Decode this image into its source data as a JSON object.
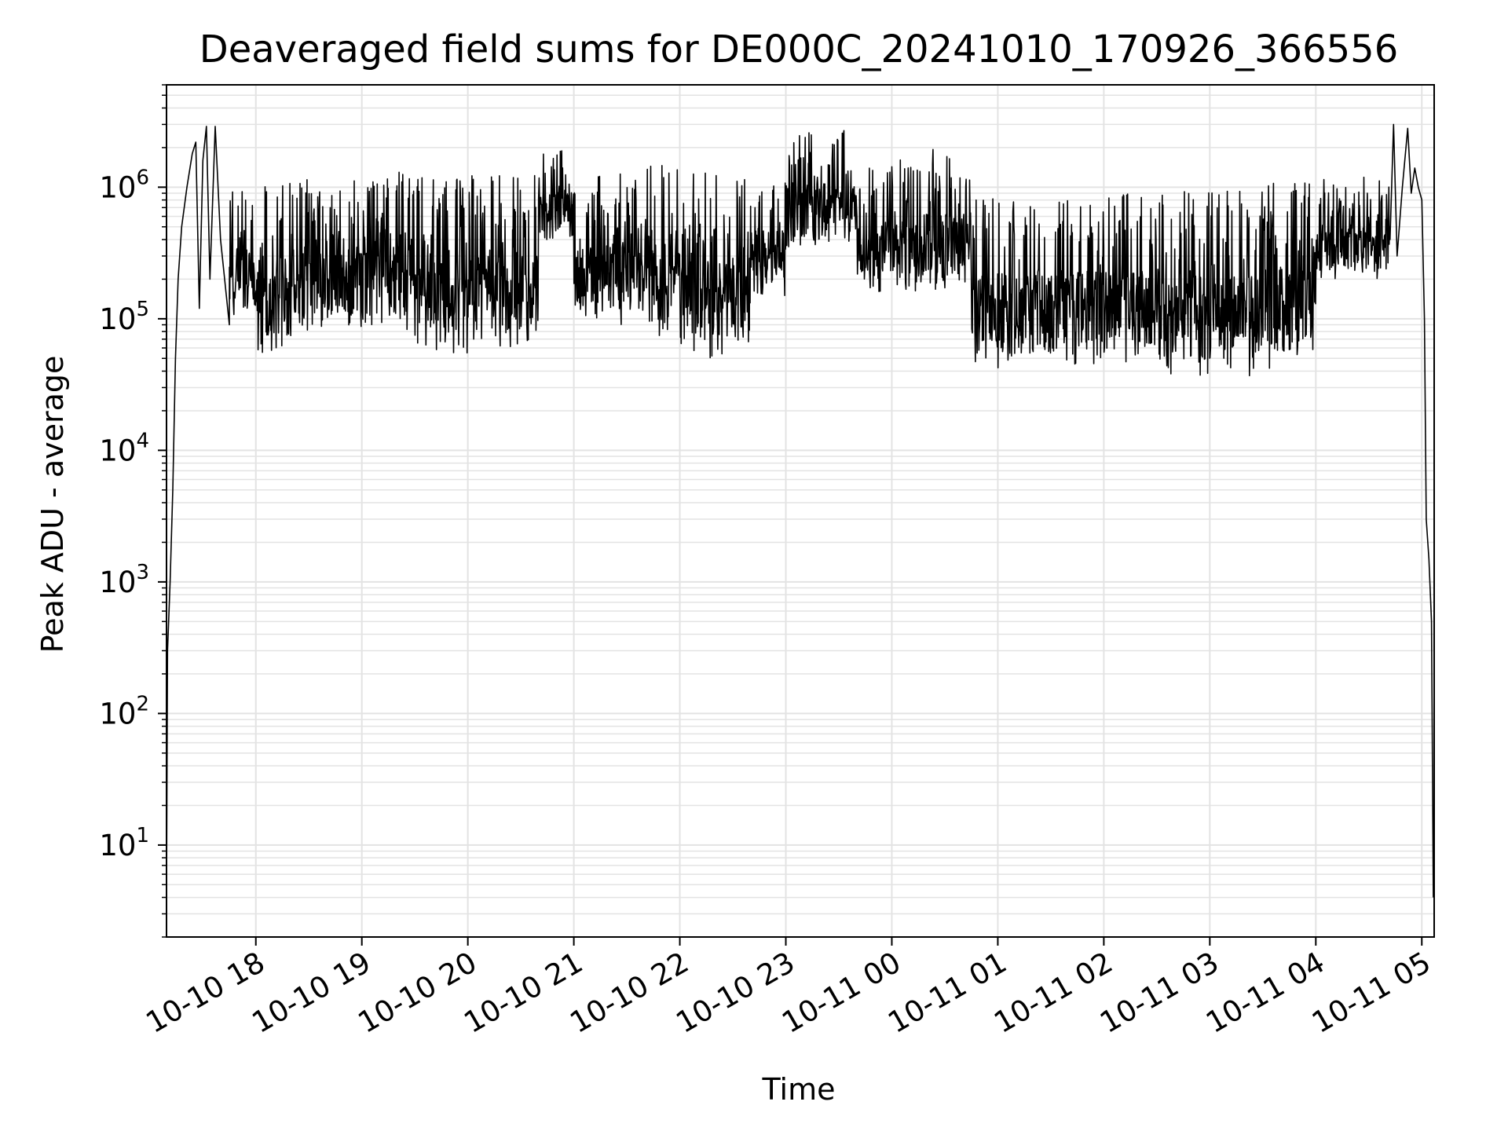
{
  "chart_data": {
    "type": "line",
    "title": "Deaveraged field sums for DE000C_20241010_170926_366556",
    "xlabel": "Time",
    "ylabel": "Peak ADU - average",
    "yscale": "log",
    "ylim": [
      2,
      6000000
    ],
    "xlim": [
      "2024-10-10T17:09:26",
      "2024-10-11T05:07:00"
    ],
    "grid": true,
    "line_color": "#000000",
    "grid_color": "#e3e3e3",
    "x_ticks": [
      {
        "value": "2024-10-10T18:00:00",
        "label": "10-10 18"
      },
      {
        "value": "2024-10-10T19:00:00",
        "label": "10-10 19"
      },
      {
        "value": "2024-10-10T20:00:00",
        "label": "10-10 20"
      },
      {
        "value": "2024-10-10T21:00:00",
        "label": "10-10 21"
      },
      {
        "value": "2024-10-10T22:00:00",
        "label": "10-10 22"
      },
      {
        "value": "2024-10-10T23:00:00",
        "label": "10-10 23"
      },
      {
        "value": "2024-10-11T00:00:00",
        "label": "10-11 00"
      },
      {
        "value": "2024-10-11T01:00:00",
        "label": "10-11 01"
      },
      {
        "value": "2024-10-11T02:00:00",
        "label": "10-11 02"
      },
      {
        "value": "2024-10-11T03:00:00",
        "label": "10-11 03"
      },
      {
        "value": "2024-10-11T04:00:00",
        "label": "10-11 04"
      },
      {
        "value": "2024-10-11T05:00:00",
        "label": "10-11 05"
      }
    ],
    "y_ticks": [
      {
        "value": 10,
        "base": "10",
        "exp": "1"
      },
      {
        "value": 100,
        "base": "10",
        "exp": "2"
      },
      {
        "value": 1000,
        "base": "10",
        "exp": "3"
      },
      {
        "value": 10000,
        "base": "10",
        "exp": "4"
      },
      {
        "value": 100000,
        "base": "10",
        "exp": "5"
      },
      {
        "value": 1000000,
        "base": "10",
        "exp": "6"
      }
    ],
    "series": [
      {
        "points": [
          [
            "2024-10-10T17:09:26",
            4
          ],
          [
            "2024-10-10T17:10:00",
            300
          ],
          [
            "2024-10-10T17:11:30",
            1000
          ],
          [
            "2024-10-10T17:13:00",
            5000
          ],
          [
            "2024-10-10T17:14:30",
            50000
          ],
          [
            "2024-10-10T17:16:00",
            200000
          ],
          [
            "2024-10-10T17:18:00",
            500000
          ],
          [
            "2024-10-10T17:21:00",
            1000000
          ],
          [
            "2024-10-10T17:24:00",
            1800000
          ],
          [
            "2024-10-10T17:26:00",
            2200000
          ],
          [
            "2024-10-10T17:28:00",
            120000
          ],
          [
            "2024-10-10T17:30:00",
            1600000
          ],
          [
            "2024-10-10T17:32:00",
            2900000
          ],
          [
            "2024-10-10T17:34:00",
            200000
          ],
          [
            "2024-10-10T17:37:00",
            2900000
          ],
          [
            "2024-10-10T17:40:00",
            400000
          ],
          [
            "2024-10-10T17:45:00",
            90000
          ]
        ]
      }
    ],
    "envelope": [
      {
        "from": "2024-10-10T17:45:00",
        "to": "2024-10-10T18:00:00",
        "low": 100000,
        "high": 1000000
      },
      {
        "from": "2024-10-10T18:00:00",
        "to": "2024-10-10T18:20:00",
        "low": 55000,
        "high": 1100000
      },
      {
        "from": "2024-10-10T18:20:00",
        "to": "2024-10-10T19:00:00",
        "low": 80000,
        "high": 1200000
      },
      {
        "from": "2024-10-10T19:00:00",
        "to": "2024-10-10T19:30:00",
        "low": 80000,
        "high": 1300000
      },
      {
        "from": "2024-10-10T19:30:00",
        "to": "2024-10-10T20:00:00",
        "low": 55000,
        "high": 1200000
      },
      {
        "from": "2024-10-10T20:00:00",
        "to": "2024-10-10T20:40:00",
        "low": 60000,
        "high": 1300000
      },
      {
        "from": "2024-10-10T20:40:00",
        "to": "2024-10-10T21:00:00",
        "low": 400000,
        "high": 1900000
      },
      {
        "from": "2024-10-10T21:00:00",
        "to": "2024-10-10T21:40:00",
        "low": 90000,
        "high": 1300000
      },
      {
        "from": "2024-10-10T21:40:00",
        "to": "2024-10-10T22:00:00",
        "low": 70000,
        "high": 1900000
      },
      {
        "from": "2024-10-10T22:00:00",
        "to": "2024-10-10T22:40:00",
        "low": 50000,
        "high": 1300000
      },
      {
        "from": "2024-10-10T22:40:00",
        "to": "2024-10-10T23:00:00",
        "low": 150000,
        "high": 1200000
      },
      {
        "from": "2024-10-10T23:00:00",
        "to": "2024-10-10T23:40:00",
        "low": 350000,
        "high": 2700000
      },
      {
        "from": "2024-10-10T23:40:00",
        "to": "2024-10-11T00:00:00",
        "low": 150000,
        "high": 1500000
      },
      {
        "from": "2024-10-11T00:00:00",
        "to": "2024-10-11T00:45:00",
        "low": 150000,
        "high": 2000000
      },
      {
        "from": "2024-10-11T00:45:00",
        "to": "2024-10-11T01:30:00",
        "low": 40000,
        "high": 900000
      },
      {
        "from": "2024-10-11T01:30:00",
        "to": "2024-10-11T02:30:00",
        "low": 45000,
        "high": 900000
      },
      {
        "from": "2024-10-11T02:30:00",
        "to": "2024-10-11T03:30:00",
        "low": 35000,
        "high": 950000
      },
      {
        "from": "2024-10-11T03:30:00",
        "to": "2024-10-11T04:00:00",
        "low": 40000,
        "high": 1100000
      },
      {
        "from": "2024-10-11T04:00:00",
        "to": "2024-10-11T04:42:00",
        "low": 200000,
        "high": 1200000
      }
    ],
    "tail": [
      [
        "2024-10-11T04:42:00",
        400000
      ],
      [
        "2024-10-11T04:44:00",
        3000000
      ],
      [
        "2024-10-11T04:46:00",
        300000
      ],
      [
        "2024-10-11T04:49:00",
        1000000
      ],
      [
        "2024-10-11T04:52:00",
        2800000
      ],
      [
        "2024-10-11T04:54:00",
        900000
      ],
      [
        "2024-10-11T04:56:00",
        1400000
      ],
      [
        "2024-10-11T04:58:00",
        1000000
      ],
      [
        "2024-10-11T05:00:00",
        800000
      ],
      [
        "2024-10-11T05:01:30",
        100000
      ],
      [
        "2024-10-11T05:02:30",
        3000
      ],
      [
        "2024-10-11T05:04:00",
        1500
      ],
      [
        "2024-10-11T05:05:30",
        500
      ],
      [
        "2024-10-11T05:06:30",
        4
      ]
    ]
  }
}
